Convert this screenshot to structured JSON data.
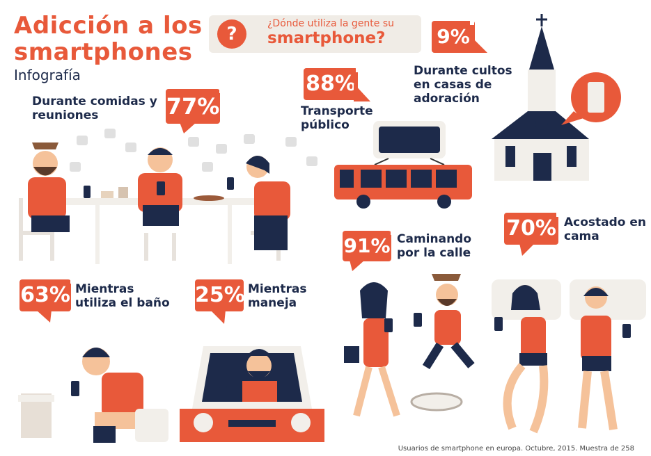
{
  "title_line1": "Adicción a los",
  "title_line2": "smartphones",
  "subtitle": "Infografía",
  "question": {
    "icon": "?",
    "line1": "¿Dónde utiliza la gente su",
    "line2": "smartphone?"
  },
  "stats": [
    {
      "id": "comidas",
      "value": "77%",
      "label_line1": "Durante comidas y",
      "label_line2": "reuniones"
    },
    {
      "id": "transporte",
      "value": "88%",
      "label_line1": "Transporte",
      "label_line2": "público"
    },
    {
      "id": "cultos",
      "value": "9%",
      "label_line1": "Durante cultos",
      "label_line2": "en casas de",
      "label_line3": "adoración"
    },
    {
      "id": "caminando",
      "value": "91%",
      "label_line1": "Caminando",
      "label_line2": "por la calle"
    },
    {
      "id": "cama",
      "value": "70%",
      "label_line1": "Acostado en",
      "label_line2": "cama"
    },
    {
      "id": "bano",
      "value": "63%",
      "label_line1": "Mientras",
      "label_line2": "utiliza el baño"
    },
    {
      "id": "maneja",
      "value": "25%",
      "label_line1": "Mientras",
      "label_line2": "maneja"
    }
  ],
  "footer": "Usuarios de smartphone en europa. Octubre, 2015. Muestra de 258",
  "colors": {
    "accent": "#e8593a",
    "dark": "#1d2a4a",
    "skin": "#f5c29a"
  }
}
